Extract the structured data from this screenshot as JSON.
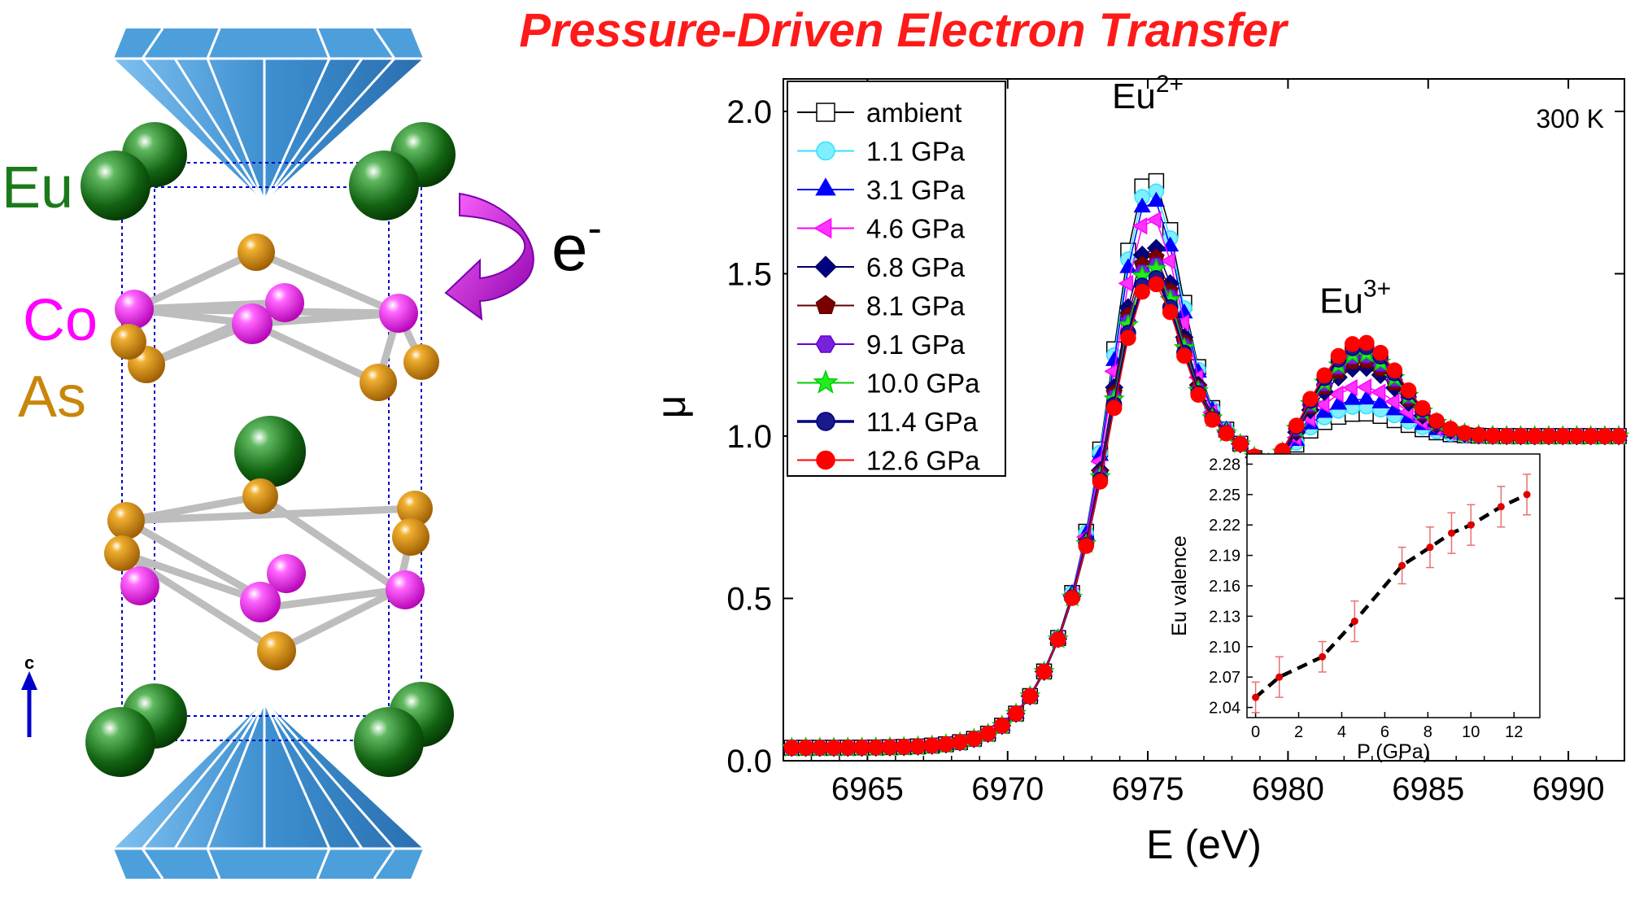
{
  "title": "Pressure-Driven Electron Transfer",
  "structure": {
    "labels": {
      "eu": "Eu",
      "co": "Co",
      "as": "As",
      "electron": "e",
      "electron_sup": "-",
      "axis_c": "c"
    },
    "colors": {
      "eu": "#1a7a1a",
      "co": "#ff00ff",
      "as": "#c8860a",
      "diamond": "#4a9fd8",
      "arrow": "#cc33cc",
      "axis": "#0000cc"
    }
  },
  "chart_data": [
    {
      "type": "line",
      "title": "",
      "xlabel": "E (eV)",
      "ylabel": "μ",
      "xlim": [
        6962,
        6992
      ],
      "ylim": [
        0.0,
        2.1
      ],
      "xticks": [
        6965,
        6970,
        6975,
        6980,
        6985,
        6990
      ],
      "yticks": [
        0.0,
        0.5,
        1.0,
        1.5,
        2.0
      ],
      "xticklabels": [
        "6965",
        "6970",
        "6975",
        "6980",
        "6985",
        "6990"
      ],
      "yticklabels": [
        "0.0",
        "0.5",
        "1.0",
        "1.5",
        "2.0"
      ],
      "temperature": "300 K",
      "annotations": [
        {
          "base": "Eu",
          "sup": "2+",
          "x": 6975,
          "y": 2.01
        },
        {
          "base": "Eu",
          "sup": "3+",
          "x": 6982.4,
          "y": 1.38
        }
      ],
      "legend_position": "top-left",
      "series": [
        {
          "name": "ambient",
          "color": "#000000",
          "fill": "#ffffff",
          "marker": "square",
          "valence": 2.05
        },
        {
          "name": "1.1 GPa",
          "color": "#33e0ff",
          "fill": "#7fefff",
          "marker": "circle",
          "valence": 2.07
        },
        {
          "name": "3.1 GPa",
          "color": "#0000ff",
          "fill": "#0000ff",
          "marker": "triangle-up",
          "valence": 2.09
        },
        {
          "name": "4.6 GPa",
          "color": "#ff00ff",
          "fill": "#ff33ff",
          "marker": "triangle-left",
          "valence": 2.125
        },
        {
          "name": "6.8 GPa",
          "color": "#000066",
          "fill": "#000080",
          "marker": "diamond",
          "valence": 2.18
        },
        {
          "name": "8.1 GPa",
          "color": "#660000",
          "fill": "#7a0000",
          "marker": "pentagon",
          "valence": 2.198
        },
        {
          "name": "9.1 GPa",
          "color": "#6600cc",
          "fill": "#7722dd",
          "marker": "hexagon",
          "valence": 2.212
        },
        {
          "name": "10.0 GPa",
          "color": "#00cc00",
          "fill": "#22ee22",
          "marker": "star",
          "valence": 2.22
        },
        {
          "name": "11.4 GPa",
          "color": "#000080",
          "fill": "#1a1a8c",
          "marker": "sphere",
          "valence": 2.238
        },
        {
          "name": "12.6 GPa",
          "color": "#ff0000",
          "fill": "#ff0000",
          "marker": "circle",
          "valence": 2.25
        }
      ]
    },
    {
      "type": "scatter",
      "title": "",
      "xlabel": "P (GPa)",
      "ylabel": "Eu valence",
      "xlim": [
        -0.4,
        13.2
      ],
      "ylim": [
        2.03,
        2.29
      ],
      "xticks": [
        0,
        2,
        4,
        6,
        8,
        10,
        12
      ],
      "yticks": [
        2.04,
        2.07,
        2.1,
        2.13,
        2.16,
        2.19,
        2.22,
        2.25,
        2.28
      ],
      "xticklabels": [
        "0",
        "2",
        "4",
        "6",
        "8",
        "10",
        "12"
      ],
      "yticklabels": [
        "2.04",
        "2.07",
        "2.10",
        "2.13",
        "2.16",
        "2.19",
        "2.22",
        "2.25",
        "2.28"
      ],
      "x": [
        0.0,
        1.1,
        3.1,
        4.6,
        6.8,
        8.1,
        9.1,
        10.0,
        11.4,
        12.6
      ],
      "y": [
        2.05,
        2.07,
        2.09,
        2.125,
        2.18,
        2.198,
        2.212,
        2.22,
        2.238,
        2.25
      ],
      "yerr": [
        0.015,
        0.02,
        0.015,
        0.02,
        0.018,
        0.02,
        0.02,
        0.02,
        0.02,
        0.02
      ],
      "fit": "dashed"
    }
  ]
}
